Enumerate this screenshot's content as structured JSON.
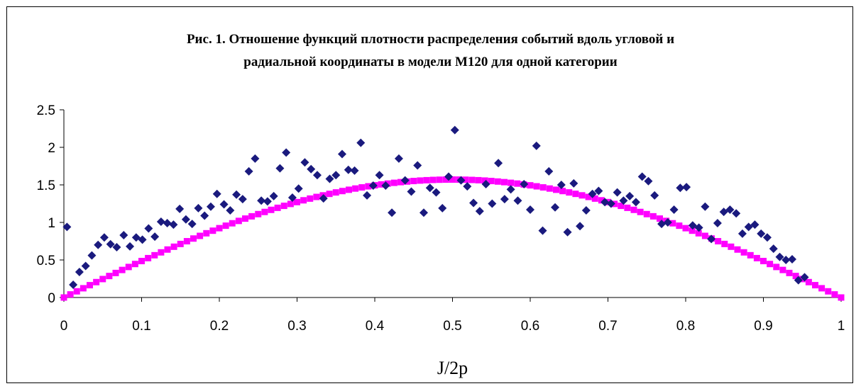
{
  "chart_data": {
    "type": "scatter",
    "title_line1": "Рис. 1. Отношение функций плотности распределения событий вдоль угловой и",
    "title_line2": "радиальной координаты в модели M120 для одной категории",
    "xlabel": "J/2p",
    "ylabel": "",
    "xlim": [
      0,
      1
    ],
    "ylim": [
      0,
      2.5
    ],
    "x_ticks": [
      "0",
      "0.1",
      "0.2",
      "0.3",
      "0.4",
      "0.5",
      "0.6",
      "0.7",
      "0.8",
      "0.9",
      "1"
    ],
    "y_ticks": [
      "0",
      "0.5",
      "1",
      "1.5",
      "2",
      "2.5"
    ],
    "grid": false,
    "legend": "none",
    "series": [
      {
        "marker": "diamond",
        "color": "#1a1a7e",
        "points": [
          [
            0.004,
            0.94
          ],
          [
            0.012,
            0.17
          ],
          [
            0.02,
            0.34
          ],
          [
            0.028,
            0.42
          ],
          [
            0.036,
            0.56
          ],
          [
            0.044,
            0.7
          ],
          [
            0.052,
            0.8
          ],
          [
            0.06,
            0.71
          ],
          [
            0.068,
            0.67
          ],
          [
            0.077,
            0.83
          ],
          [
            0.085,
            0.68
          ],
          [
            0.093,
            0.8
          ],
          [
            0.101,
            0.77
          ],
          [
            0.109,
            0.92
          ],
          [
            0.117,
            0.81
          ],
          [
            0.125,
            1.01
          ],
          [
            0.133,
            0.99
          ],
          [
            0.141,
            0.97
          ],
          [
            0.149,
            1.18
          ],
          [
            0.157,
            1.04
          ],
          [
            0.165,
            0.98
          ],
          [
            0.173,
            1.19
          ],
          [
            0.181,
            1.09
          ],
          [
            0.189,
            1.21
          ],
          [
            0.197,
            1.38
          ],
          [
            0.206,
            1.24
          ],
          [
            0.214,
            1.16
          ],
          [
            0.222,
            1.37
          ],
          [
            0.23,
            1.31
          ],
          [
            0.238,
            1.68
          ],
          [
            0.246,
            1.85
          ],
          [
            0.254,
            1.29
          ],
          [
            0.262,
            1.28
          ],
          [
            0.27,
            1.35
          ],
          [
            0.278,
            1.72
          ],
          [
            0.286,
            1.93
          ],
          [
            0.294,
            1.33
          ],
          [
            0.302,
            1.45
          ],
          [
            0.31,
            1.8
          ],
          [
            0.318,
            1.71
          ],
          [
            0.326,
            1.63
          ],
          [
            0.334,
            1.32
          ],
          [
            0.342,
            1.58
          ],
          [
            0.35,
            1.63
          ],
          [
            0.358,
            1.91
          ],
          [
            0.366,
            1.7
          ],
          [
            0.374,
            1.69
          ],
          [
            0.382,
            2.06
          ],
          [
            0.39,
            1.36
          ],
          [
            0.398,
            1.49
          ],
          [
            0.406,
            1.63
          ],
          [
            0.414,
            1.49
          ],
          [
            0.422,
            1.13
          ],
          [
            0.431,
            1.85
          ],
          [
            0.439,
            1.56
          ],
          [
            0.447,
            1.41
          ],
          [
            0.455,
            1.76
          ],
          [
            0.463,
            1.13
          ],
          [
            0.471,
            1.46
          ],
          [
            0.479,
            1.4
          ],
          [
            0.487,
            1.19
          ],
          [
            0.495,
            1.61
          ],
          [
            0.503,
            2.23
          ],
          [
            0.511,
            1.56
          ],
          [
            0.519,
            1.48
          ],
          [
            0.527,
            1.26
          ],
          [
            0.535,
            1.15
          ],
          [
            0.543,
            1.51
          ],
          [
            0.551,
            1.25
          ],
          [
            0.559,
            1.79
          ],
          [
            0.567,
            1.31
          ],
          [
            0.575,
            1.44
          ],
          [
            0.584,
            1.29
          ],
          [
            0.592,
            1.51
          ],
          [
            0.6,
            1.17
          ],
          [
            0.608,
            2.02
          ],
          [
            0.616,
            0.89
          ],
          [
            0.624,
            1.68
          ],
          [
            0.632,
            1.2
          ],
          [
            0.64,
            1.5
          ],
          [
            0.648,
            0.87
          ],
          [
            0.656,
            1.52
          ],
          [
            0.664,
            0.95
          ],
          [
            0.672,
            1.16
          ],
          [
            0.68,
            1.38
          ],
          [
            0.688,
            1.42
          ],
          [
            0.696,
            1.27
          ],
          [
            0.704,
            1.25
          ],
          [
            0.712,
            1.4
          ],
          [
            0.72,
            1.29
          ],
          [
            0.728,
            1.35
          ],
          [
            0.736,
            1.27
          ],
          [
            0.744,
            1.61
          ],
          [
            0.752,
            1.55
          ],
          [
            0.76,
            1.36
          ],
          [
            0.769,
            0.98
          ],
          [
            0.777,
            1.0
          ],
          [
            0.785,
            1.17
          ],
          [
            0.793,
            1.46
          ],
          [
            0.801,
            1.47
          ],
          [
            0.809,
            0.96
          ],
          [
            0.817,
            0.93
          ],
          [
            0.825,
            1.21
          ],
          [
            0.833,
            0.78
          ],
          [
            0.841,
            0.99
          ],
          [
            0.849,
            1.14
          ],
          [
            0.857,
            1.17
          ],
          [
            0.865,
            1.12
          ],
          [
            0.873,
            0.85
          ],
          [
            0.881,
            0.94
          ],
          [
            0.889,
            0.97
          ],
          [
            0.897,
            0.85
          ],
          [
            0.905,
            0.8
          ],
          [
            0.913,
            0.65
          ],
          [
            0.921,
            0.54
          ],
          [
            0.929,
            0.5
          ],
          [
            0.937,
            0.51
          ],
          [
            0.945,
            0.23
          ],
          [
            0.953,
            0.27
          ]
        ]
      },
      {
        "marker": "square",
        "color": "#ff00ff",
        "note_function": "pi/2 * sin(pi * x)",
        "n_points": 120,
        "peak": 1.57
      }
    ]
  }
}
